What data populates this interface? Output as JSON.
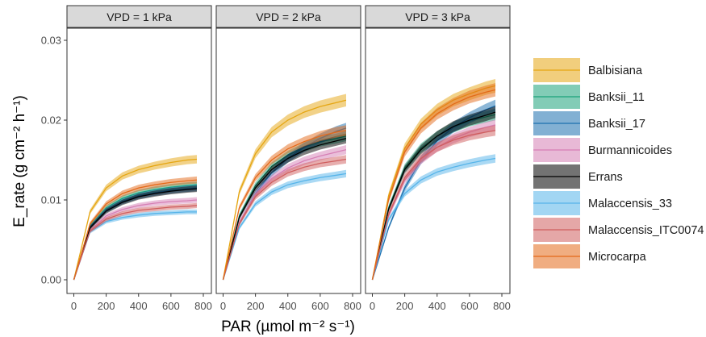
{
  "chart_data": {
    "type": "line",
    "facet_titles": [
      "VPD = 1 kPa",
      "VPD = 2 kPa",
      "VPD = 3 kPa"
    ],
    "xlabel": "PAR (µmol m⁻² s⁻¹)",
    "ylabel": "E_rate (g cm⁻² h⁻¹)",
    "xlim": [
      0,
      800
    ],
    "ylim": [
      0,
      0.03
    ],
    "x_ticks": [
      "0",
      "200",
      "400",
      "600",
      "800"
    ],
    "y_ticks": [
      "0.00",
      "0.01",
      "0.02",
      "0.03"
    ],
    "x_samples": [
      0,
      100,
      200,
      300,
      400,
      500,
      600,
      700,
      760
    ],
    "legend_position": "right",
    "grid": false,
    "series": [
      {
        "name": "Balbisiana",
        "color": "#E5A612",
        "values": [
          [
            0,
            0.0085,
            0.0115,
            0.013,
            0.0138,
            0.0143,
            0.0147,
            0.015,
            0.0151
          ],
          [
            0,
            0.011,
            0.0158,
            0.0185,
            0.02,
            0.021,
            0.0217,
            0.0222,
            0.0225
          ],
          [
            0,
            0.0105,
            0.0165,
            0.0195,
            0.0213,
            0.0225,
            0.0233,
            0.024,
            0.0243
          ]
        ]
      },
      {
        "name": "Banksii_11",
        "color": "#1BA37A",
        "values": [
          [
            0,
            0.0068,
            0.009,
            0.0102,
            0.0109,
            0.0113,
            0.0116,
            0.0118,
            0.0119
          ],
          [
            0,
            0.008,
            0.0118,
            0.0142,
            0.0156,
            0.0166,
            0.0173,
            0.0177,
            0.018
          ],
          [
            0,
            0.009,
            0.014,
            0.0165,
            0.018,
            0.0191,
            0.0199,
            0.0204,
            0.0207
          ]
        ]
      },
      {
        "name": "Banksii_17",
        "color": "#1C6FAF",
        "values": [
          [
            0,
            0.0066,
            0.0087,
            0.0098,
            0.0105,
            0.0109,
            0.0112,
            0.0114,
            0.0115
          ],
          [
            0,
            0.007,
            0.0108,
            0.0134,
            0.0152,
            0.0166,
            0.0177,
            0.0186,
            0.019
          ],
          [
            0,
            0.0065,
            0.0115,
            0.015,
            0.0174,
            0.0191,
            0.0203,
            0.0213,
            0.0218
          ]
        ]
      },
      {
        "name": "Burmannicoides",
        "color": "#D67FB5",
        "values": [
          [
            0,
            0.0062,
            0.008,
            0.0088,
            0.0093,
            0.0096,
            0.0098,
            0.0099,
            0.01
          ],
          [
            0,
            0.0072,
            0.0107,
            0.0127,
            0.014,
            0.0149,
            0.0155,
            0.016,
            0.0163
          ],
          [
            0,
            0.008,
            0.0125,
            0.015,
            0.0166,
            0.0177,
            0.0185,
            0.0191,
            0.0194
          ]
        ]
      },
      {
        "name": "Errans",
        "color": "#000000",
        "values": [
          [
            0,
            0.0065,
            0.0086,
            0.0097,
            0.0104,
            0.0108,
            0.0111,
            0.0113,
            0.0114
          ],
          [
            0,
            0.0078,
            0.0115,
            0.0138,
            0.0152,
            0.0162,
            0.0169,
            0.0174,
            0.0177
          ],
          [
            0,
            0.0088,
            0.0138,
            0.0163,
            0.018,
            0.0192,
            0.02,
            0.0206,
            0.021
          ]
        ]
      },
      {
        "name": "Malaccensis_33",
        "color": "#56B4E9",
        "values": [
          [
            0,
            0.006,
            0.0073,
            0.0078,
            0.0081,
            0.0083,
            0.0084,
            0.0085,
            0.0085
          ],
          [
            0,
            0.0065,
            0.0095,
            0.011,
            0.0119,
            0.0124,
            0.0128,
            0.0131,
            0.0133
          ],
          [
            0,
            0.0075,
            0.0108,
            0.0125,
            0.0135,
            0.0141,
            0.0146,
            0.015,
            0.0152
          ]
        ]
      },
      {
        "name": "Malaccensis_ITC0074",
        "color": "#CF5E5E",
        "values": [
          [
            0,
            0.0061,
            0.0076,
            0.0083,
            0.0087,
            0.0089,
            0.0091,
            0.0092,
            0.0093
          ],
          [
            0,
            0.007,
            0.0104,
            0.0122,
            0.0134,
            0.0141,
            0.0146,
            0.0149,
            0.0151
          ],
          [
            0,
            0.0082,
            0.0128,
            0.0152,
            0.0166,
            0.0175,
            0.0181,
            0.0185,
            0.0187
          ]
        ]
      },
      {
        "name": "Microcarpa",
        "color": "#E36A1A",
        "values": [
          [
            0,
            0.007,
            0.0095,
            0.0108,
            0.0115,
            0.0119,
            0.0122,
            0.0124,
            0.0125
          ],
          [
            0,
            0.009,
            0.0128,
            0.015,
            0.0164,
            0.0173,
            0.018,
            0.0185,
            0.0187
          ],
          [
            0,
            0.01,
            0.016,
            0.019,
            0.0208,
            0.022,
            0.0229,
            0.0235,
            0.0238
          ]
        ]
      }
    ]
  }
}
